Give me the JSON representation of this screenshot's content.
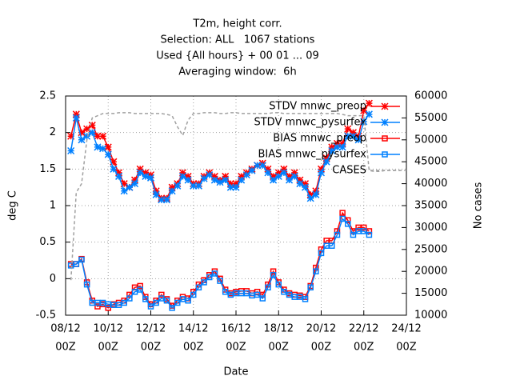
{
  "chart_data": {
    "type": "line",
    "title": [
      "T2m, height corr.",
      "Selection: ALL   1067 stations",
      "Used {All hours} + 00 01 ... 09",
      "Averaging window:  6h"
    ],
    "xlabel": "Date",
    "ylabel": "deg C",
    "y2label": "No cases",
    "xlim": [
      0,
      384
    ],
    "xticks": [
      {
        "value": 0,
        "label": [
          "08/12",
          "00Z"
        ]
      },
      {
        "value": 48,
        "label": [
          "10/12",
          "00Z"
        ]
      },
      {
        "value": 96,
        "label": [
          "12/12",
          "00Z"
        ]
      },
      {
        "value": 144,
        "label": [
          "14/12",
          "00Z"
        ]
      },
      {
        "value": 192,
        "label": [
          "16/12",
          "00Z"
        ]
      },
      {
        "value": 240,
        "label": [
          "18/12",
          "00Z"
        ]
      },
      {
        "value": 288,
        "label": [
          "20/12",
          "00Z"
        ]
      },
      {
        "value": 336,
        "label": [
          "22/12",
          "00Z"
        ]
      },
      {
        "value": 384,
        "label": [
          "24/12",
          "00Z"
        ]
      }
    ],
    "ylim": [
      -0.5,
      2.5
    ],
    "yticks": [
      -0.5,
      0,
      0.5,
      1,
      1.5,
      2,
      2.5
    ],
    "y2lim": [
      10000,
      60000
    ],
    "y2ticks": [
      10000,
      15000,
      20000,
      25000,
      30000,
      35000,
      40000,
      45000,
      50000,
      55000,
      60000
    ],
    "grid": true,
    "legend": "top-right",
    "x": [
      6,
      12,
      18,
      24,
      30,
      36,
      42,
      48,
      54,
      60,
      66,
      72,
      78,
      84,
      90,
      96,
      102,
      108,
      114,
      120,
      126,
      132,
      138,
      144,
      150,
      156,
      162,
      168,
      174,
      180,
      186,
      192,
      198,
      204,
      210,
      216,
      222,
      228,
      234,
      240,
      246,
      252,
      258,
      264,
      270,
      276,
      282,
      288,
      294,
      300,
      306,
      312,
      318,
      324,
      330,
      336,
      342
    ],
    "series": [
      {
        "name": "STDV mnwc_preop",
        "color": "#ff0000",
        "marker": "star",
        "values": [
          1.95,
          2.25,
          2.0,
          2.05,
          2.1,
          1.95,
          1.95,
          1.8,
          1.6,
          1.45,
          1.3,
          1.25,
          1.35,
          1.5,
          1.45,
          1.42,
          1.2,
          1.1,
          1.1,
          1.25,
          1.3,
          1.45,
          1.4,
          1.3,
          1.3,
          1.4,
          1.45,
          1.4,
          1.35,
          1.4,
          1.3,
          1.3,
          1.4,
          1.45,
          1.5,
          1.55,
          1.58,
          1.5,
          1.4,
          1.45,
          1.5,
          1.4,
          1.45,
          1.35,
          1.3,
          1.15,
          1.2,
          1.5,
          1.65,
          1.8,
          1.85,
          1.85,
          2.05,
          2.0,
          1.95,
          2.3,
          2.4
        ]
      },
      {
        "name": "STDV mnwc_pysurfex",
        "color": "#0080ff",
        "marker": "star",
        "values": [
          1.75,
          2.2,
          1.9,
          1.95,
          2.0,
          1.8,
          1.78,
          1.7,
          1.5,
          1.4,
          1.2,
          1.25,
          1.3,
          1.45,
          1.4,
          1.38,
          1.15,
          1.08,
          1.08,
          1.2,
          1.27,
          1.4,
          1.35,
          1.27,
          1.27,
          1.37,
          1.42,
          1.35,
          1.32,
          1.35,
          1.25,
          1.25,
          1.35,
          1.42,
          1.48,
          1.55,
          1.55,
          1.45,
          1.35,
          1.4,
          1.45,
          1.35,
          1.4,
          1.3,
          1.25,
          1.1,
          1.15,
          1.45,
          1.6,
          1.75,
          1.8,
          1.8,
          1.95,
          1.95,
          1.9,
          2.15,
          2.25
        ]
      },
      {
        "name": "BIAS mnwc_preop",
        "color": "#ff0000",
        "marker": "square",
        "values": [
          0.2,
          0.2,
          0.27,
          -0.05,
          -0.3,
          -0.38,
          -0.35,
          -0.4,
          -0.35,
          -0.33,
          -0.3,
          -0.22,
          -0.12,
          -0.1,
          -0.25,
          -0.35,
          -0.3,
          -0.22,
          -0.28,
          -0.37,
          -0.3,
          -0.25,
          -0.27,
          -0.18,
          -0.08,
          -0.02,
          0.05,
          0.1,
          0.0,
          -0.15,
          -0.2,
          -0.18,
          -0.17,
          -0.17,
          -0.2,
          -0.18,
          -0.22,
          -0.08,
          0.1,
          -0.05,
          -0.15,
          -0.2,
          -0.22,
          -0.23,
          -0.25,
          -0.1,
          0.15,
          0.4,
          0.52,
          0.52,
          0.65,
          0.9,
          0.8,
          0.65,
          0.7,
          0.7,
          0.65
        ]
      },
      {
        "name": "BIAS mnwc_pysurfex",
        "color": "#0080ff",
        "marker": "square",
        "values": [
          0.18,
          0.2,
          0.26,
          -0.08,
          -0.33,
          -0.33,
          -0.33,
          -0.35,
          -0.36,
          -0.36,
          -0.33,
          -0.27,
          -0.18,
          -0.15,
          -0.28,
          -0.38,
          -0.33,
          -0.27,
          -0.3,
          -0.4,
          -0.33,
          -0.28,
          -0.3,
          -0.22,
          -0.12,
          -0.05,
          0.02,
          0.07,
          -0.03,
          -0.18,
          -0.22,
          -0.2,
          -0.2,
          -0.2,
          -0.23,
          -0.22,
          -0.27,
          -0.12,
          0.05,
          -0.08,
          -0.18,
          -0.22,
          -0.25,
          -0.25,
          -0.28,
          -0.12,
          0.1,
          0.35,
          0.45,
          0.45,
          0.6,
          0.82,
          0.75,
          0.6,
          0.65,
          0.65,
          0.6
        ]
      },
      {
        "name": "CASES",
        "color": "#a0a0a0",
        "marker": "none",
        "dashed": true,
        "axis": "y2",
        "x": [
          6,
          12,
          18,
          24,
          30,
          36,
          42,
          48,
          54,
          60,
          66,
          72,
          78,
          84,
          90,
          96,
          102,
          108,
          114,
          120,
          126,
          132,
          138,
          144,
          150,
          156,
          162,
          168,
          174,
          180,
          186,
          192,
          198,
          204,
          210,
          216,
          222,
          228,
          234,
          240,
          246,
          252,
          258,
          264,
          270,
          276,
          282,
          288,
          294,
          300,
          306,
          312,
          318,
          324,
          330,
          336,
          342,
          348,
          354,
          360,
          366,
          372,
          378,
          384
        ],
        "values": [
          18000,
          38000,
          40000,
          50000,
          55000,
          55500,
          56000,
          56000,
          56000,
          56200,
          56200,
          56200,
          56000,
          56000,
          56000,
          56000,
          56000,
          56000,
          55800,
          55500,
          53000,
          51000,
          54500,
          56000,
          56000,
          56200,
          56200,
          56200,
          56000,
          56000,
          56200,
          56200,
          56000,
          56000,
          56000,
          56000,
          56000,
          56000,
          56200,
          56200,
          56000,
          56000,
          56000,
          56000,
          56000,
          56000,
          56000,
          56000,
          56000,
          56000,
          56000,
          55800,
          55500,
          55500,
          55500,
          55500,
          43000,
          42800,
          42800,
          43000,
          43000,
          43000,
          43000,
          43000
        ]
      }
    ]
  }
}
